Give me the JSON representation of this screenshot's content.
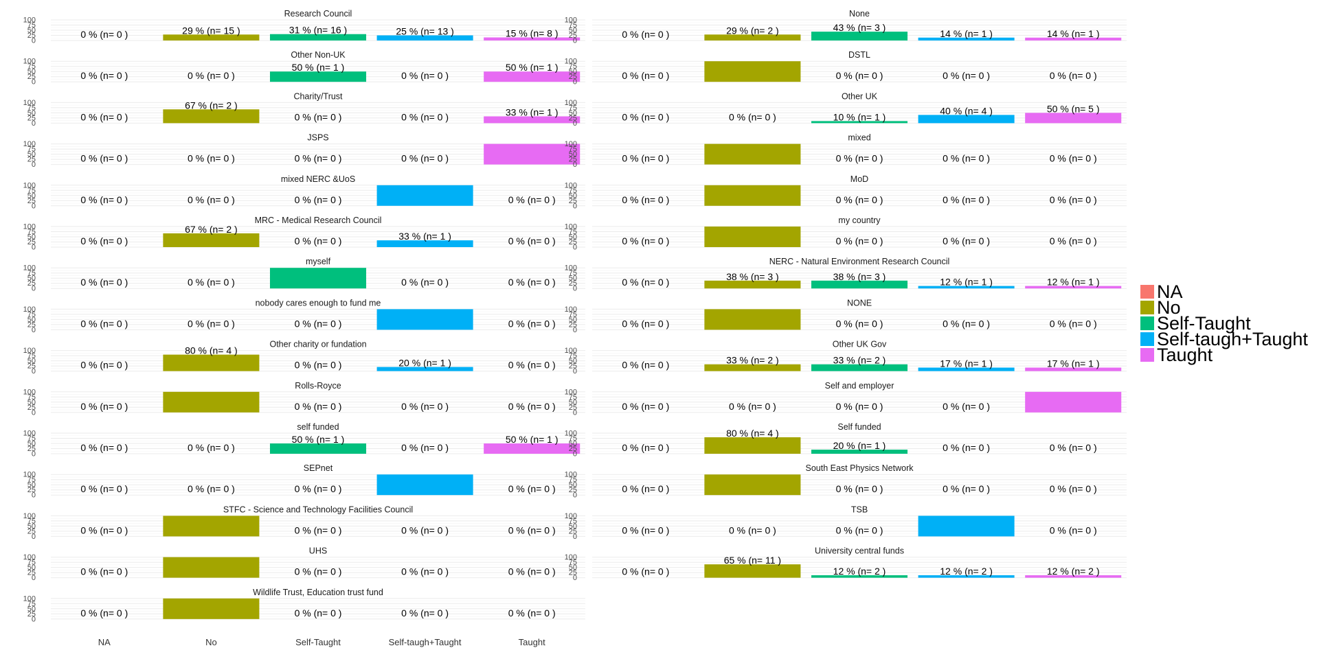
{
  "chart_data": {
    "type": "bar",
    "categories": [
      "NA",
      "No",
      "Self-Taught",
      "Self-taugh+Taught",
      "Taught"
    ],
    "colors": [
      "#F8766D",
      "#A3A500",
      "#00BF7D",
      "#00B0F6",
      "#E76BF3"
    ],
    "y_ticks": [
      "100",
      "75",
      "50",
      "25",
      "0"
    ],
    "ylim": [
      0,
      100
    ],
    "grid": true,
    "legend_position": "right",
    "legend": [
      "NA",
      "No",
      "Self-Taught",
      "Self-taugh+Taught",
      "Taught"
    ],
    "panels": [
      {
        "title": "Research Council",
        "values": [
          0,
          29,
          31,
          25,
          15
        ],
        "labels": [
          "0 %  (n= 0 )",
          "29 %  (n= 15 )",
          "31 %  (n= 16 )",
          "25 %  (n= 13 )",
          "15 %  (n= 8 )"
        ]
      },
      {
        "title": "None",
        "values": [
          0,
          29,
          43,
          14,
          14
        ],
        "labels": [
          "0 %  (n= 0 )",
          "29 %  (n= 2 )",
          "43 %  (n= 3 )",
          "14 %  (n= 1 )",
          "14 %  (n= 1 )"
        ]
      },
      {
        "title": "Other Non-UK",
        "values": [
          0,
          0,
          50,
          0,
          50
        ],
        "labels": [
          "0 %  (n= 0 )",
          "0 %  (n= 0 )",
          "50 %  (n= 1 )",
          "0 %  (n= 0 )",
          "50 %  (n= 1 )"
        ]
      },
      {
        "title": "DSTL",
        "values": [
          0,
          100,
          0,
          0,
          0
        ],
        "labels": [
          "0 %  (n= 0 )",
          "",
          "0 %  (n= 0 )",
          "0 %  (n= 0 )",
          "0 %  (n= 0 )"
        ]
      },
      {
        "title": "Charity/Trust",
        "values": [
          0,
          67,
          0,
          0,
          33
        ],
        "labels": [
          "0 %  (n= 0 )",
          "67 %  (n= 2 )",
          "0 %  (n= 0 )",
          "0 %  (n= 0 )",
          "33 %  (n= 1 )"
        ]
      },
      {
        "title": "Other UK",
        "values": [
          0,
          0,
          10,
          40,
          50
        ],
        "labels": [
          "0 %  (n= 0 )",
          "0 %  (n= 0 )",
          "10 %  (n= 1 )",
          "40 %  (n= 4 )",
          "50 %  (n= 5 )"
        ]
      },
      {
        "title": "JSPS",
        "values": [
          0,
          0,
          0,
          0,
          100
        ],
        "labels": [
          "0 %  (n= 0 )",
          "0 %  (n= 0 )",
          "0 %  (n= 0 )",
          "0 %  (n= 0 )",
          ""
        ]
      },
      {
        "title": "mixed",
        "values": [
          0,
          100,
          0,
          0,
          0
        ],
        "labels": [
          "0 %  (n= 0 )",
          "",
          "0 %  (n= 0 )",
          "0 %  (n= 0 )",
          "0 %  (n= 0 )"
        ]
      },
      {
        "title": "mixed NERC &UoS",
        "values": [
          0,
          0,
          0,
          100,
          0
        ],
        "labels": [
          "0 %  (n= 0 )",
          "0 %  (n= 0 )",
          "0 %  (n= 0 )",
          "",
          "0 %  (n= 0 )"
        ]
      },
      {
        "title": "MoD",
        "values": [
          0,
          100,
          0,
          0,
          0
        ],
        "labels": [
          "0 %  (n= 0 )",
          "",
          "0 %  (n= 0 )",
          "0 %  (n= 0 )",
          "0 %  (n= 0 )"
        ]
      },
      {
        "title": "MRC - Medical Research Council",
        "values": [
          0,
          67,
          0,
          33,
          0
        ],
        "labels": [
          "0 %  (n= 0 )",
          "67 %  (n= 2 )",
          "0 %  (n= 0 )",
          "33 %  (n= 1 )",
          "0 %  (n= 0 )"
        ]
      },
      {
        "title": "my country",
        "values": [
          0,
          100,
          0,
          0,
          0
        ],
        "labels": [
          "0 %  (n= 0 )",
          "",
          "0 %  (n= 0 )",
          "0 %  (n= 0 )",
          "0 %  (n= 0 )"
        ]
      },
      {
        "title": "myself",
        "values": [
          0,
          0,
          100,
          0,
          0
        ],
        "labels": [
          "0 %  (n= 0 )",
          "0 %  (n= 0 )",
          "",
          "0 %  (n= 0 )",
          "0 %  (n= 0 )"
        ]
      },
      {
        "title": "NERC - Natural Environment Research Council",
        "values": [
          0,
          38,
          38,
          12,
          12
        ],
        "labels": [
          "0 %  (n= 0 )",
          "38 %  (n= 3 )",
          "38 %  (n= 3 )",
          "12 %  (n= 1 )",
          "12 %  (n= 1 )"
        ]
      },
      {
        "title": "nobody cares enough to fund me",
        "values": [
          0,
          0,
          0,
          100,
          0
        ],
        "labels": [
          "0 %  (n= 0 )",
          "0 %  (n= 0 )",
          "0 %  (n= 0 )",
          "",
          "0 %  (n= 0 )"
        ]
      },
      {
        "title": "NONE",
        "values": [
          0,
          100,
          0,
          0,
          0
        ],
        "labels": [
          "0 %  (n= 0 )",
          "",
          "0 %  (n= 0 )",
          "0 %  (n= 0 )",
          "0 %  (n= 0 )"
        ]
      },
      {
        "title": "Other charity or fundation",
        "values": [
          0,
          80,
          0,
          20,
          0
        ],
        "labels": [
          "0 %  (n= 0 )",
          "80 %  (n= 4 )",
          "0 %  (n= 0 )",
          "20 %  (n= 1 )",
          "0 %  (n= 0 )"
        ]
      },
      {
        "title": "Other UK Gov",
        "values": [
          0,
          33,
          33,
          17,
          17
        ],
        "labels": [
          "0 %  (n= 0 )",
          "33 %  (n= 2 )",
          "33 %  (n= 2 )",
          "17 %  (n= 1 )",
          "17 %  (n= 1 )"
        ]
      },
      {
        "title": "Rolls-Royce",
        "values": [
          0,
          100,
          0,
          0,
          0
        ],
        "labels": [
          "0 %  (n= 0 )",
          "",
          "0 %  (n= 0 )",
          "0 %  (n= 0 )",
          "0 %  (n= 0 )"
        ]
      },
      {
        "title": "Self and employer",
        "values": [
          0,
          0,
          0,
          0,
          100
        ],
        "labels": [
          "0 %  (n= 0 )",
          "0 %  (n= 0 )",
          "0 %  (n= 0 )",
          "0 %  (n= 0 )",
          ""
        ]
      },
      {
        "title": "self funded",
        "values": [
          0,
          0,
          50,
          0,
          50
        ],
        "labels": [
          "0 %  (n= 0 )",
          "0 %  (n= 0 )",
          "50 %  (n= 1 )",
          "0 %  (n= 0 )",
          "50 %  (n= 1 )"
        ]
      },
      {
        "title": "Self funded",
        "values": [
          0,
          80,
          20,
          0,
          0
        ],
        "labels": [
          "0 %  (n= 0 )",
          "80 %  (n= 4 )",
          "20 %  (n= 1 )",
          "0 %  (n= 0 )",
          "0 %  (n= 0 )"
        ]
      },
      {
        "title": "SEPnet",
        "values": [
          0,
          0,
          0,
          100,
          0
        ],
        "labels": [
          "0 %  (n= 0 )",
          "0 %  (n= 0 )",
          "0 %  (n= 0 )",
          "",
          "0 %  (n= 0 )"
        ]
      },
      {
        "title": "South East Physics Network",
        "values": [
          0,
          100,
          0,
          0,
          0
        ],
        "labels": [
          "0 %  (n= 0 )",
          "",
          "0 %  (n= 0 )",
          "0 %  (n= 0 )",
          "0 %  (n= 0 )"
        ]
      },
      {
        "title": "STFC - Science and Technology Facilities Council",
        "values": [
          0,
          100,
          0,
          0,
          0
        ],
        "labels": [
          "0 %  (n= 0 )",
          "",
          "0 %  (n= 0 )",
          "0 %  (n= 0 )",
          "0 %  (n= 0 )"
        ]
      },
      {
        "title": "TSB",
        "values": [
          0,
          0,
          0,
          100,
          0
        ],
        "labels": [
          "0 %  (n= 0 )",
          "0 %  (n= 0 )",
          "0 %  (n= 0 )",
          "",
          "0 %  (n= 0 )"
        ]
      },
      {
        "title": "UHS",
        "values": [
          0,
          100,
          0,
          0,
          0
        ],
        "labels": [
          "0 %  (n= 0 )",
          "",
          "0 %  (n= 0 )",
          "0 %  (n= 0 )",
          "0 %  (n= 0 )"
        ]
      },
      {
        "title": "University central funds",
        "values": [
          0,
          65,
          12,
          12,
          12
        ],
        "labels": [
          "0 %  (n= 0 )",
          "65 %  (n= 11 )",
          "12 %  (n= 2 )",
          "12 %  (n= 2 )",
          "12 %  (n= 2 )"
        ]
      },
      {
        "title": "Wildlife Trust, Education trust fund",
        "values": [
          0,
          100,
          0,
          0,
          0
        ],
        "labels": [
          "0 %  (n= 0 )",
          "",
          "0 %  (n= 0 )",
          "0 %  (n= 0 )",
          "0 %  (n= 0 )"
        ]
      }
    ]
  }
}
